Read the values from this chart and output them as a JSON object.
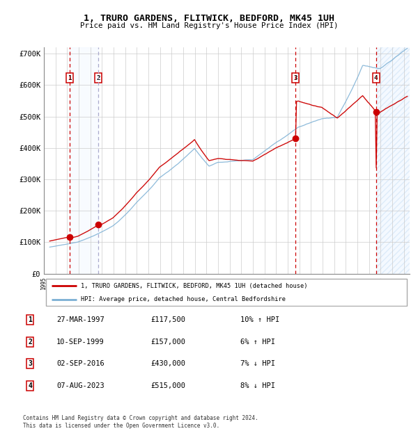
{
  "title": "1, TRURO GARDENS, FLITWICK, BEDFORD, MK45 1UH",
  "subtitle": "Price paid vs. HM Land Registry's House Price Index (HPI)",
  "xlim_start": 1995.25,
  "xlim_end": 2026.5,
  "ylim_min": 0,
  "ylim_max": 720000,
  "yticks": [
    0,
    100000,
    200000,
    300000,
    400000,
    500000,
    600000,
    700000
  ],
  "ytick_labels": [
    "£0",
    "£100K",
    "£200K",
    "£300K",
    "£400K",
    "£500K",
    "£600K",
    "£700K"
  ],
  "sale_dates_year": [
    1997.23,
    1999.69,
    2016.67,
    2023.6
  ],
  "sale_prices": [
    117500,
    157000,
    430000,
    515000
  ],
  "sale_labels": [
    "1",
    "2",
    "3",
    "4"
  ],
  "red_line_color": "#cc0000",
  "blue_line_color": "#7aafd4",
  "vline2_color": "#aaaacc",
  "shaded_color": "#ddeeff",
  "hatch_color": "#ddeeff",
  "legend_entry1": "1, TRURO GARDENS, FLITWICK, BEDFORD, MK45 1UH (detached house)",
  "legend_entry2": "HPI: Average price, detached house, Central Bedfordshire",
  "table_rows": [
    [
      "1",
      "27-MAR-1997",
      "£117,500",
      "10% ↑ HPI"
    ],
    [
      "2",
      "10-SEP-1999",
      "£157,000",
      "6% ↑ HPI"
    ],
    [
      "3",
      "02-SEP-2016",
      "£430,000",
      "7% ↓ HPI"
    ],
    [
      "4",
      "07-AUG-2023",
      "£515,000",
      "8% ↓ HPI"
    ]
  ],
  "footer": "Contains HM Land Registry data © Crown copyright and database right 2024.\nThis data is licensed under the Open Government Licence v3.0."
}
